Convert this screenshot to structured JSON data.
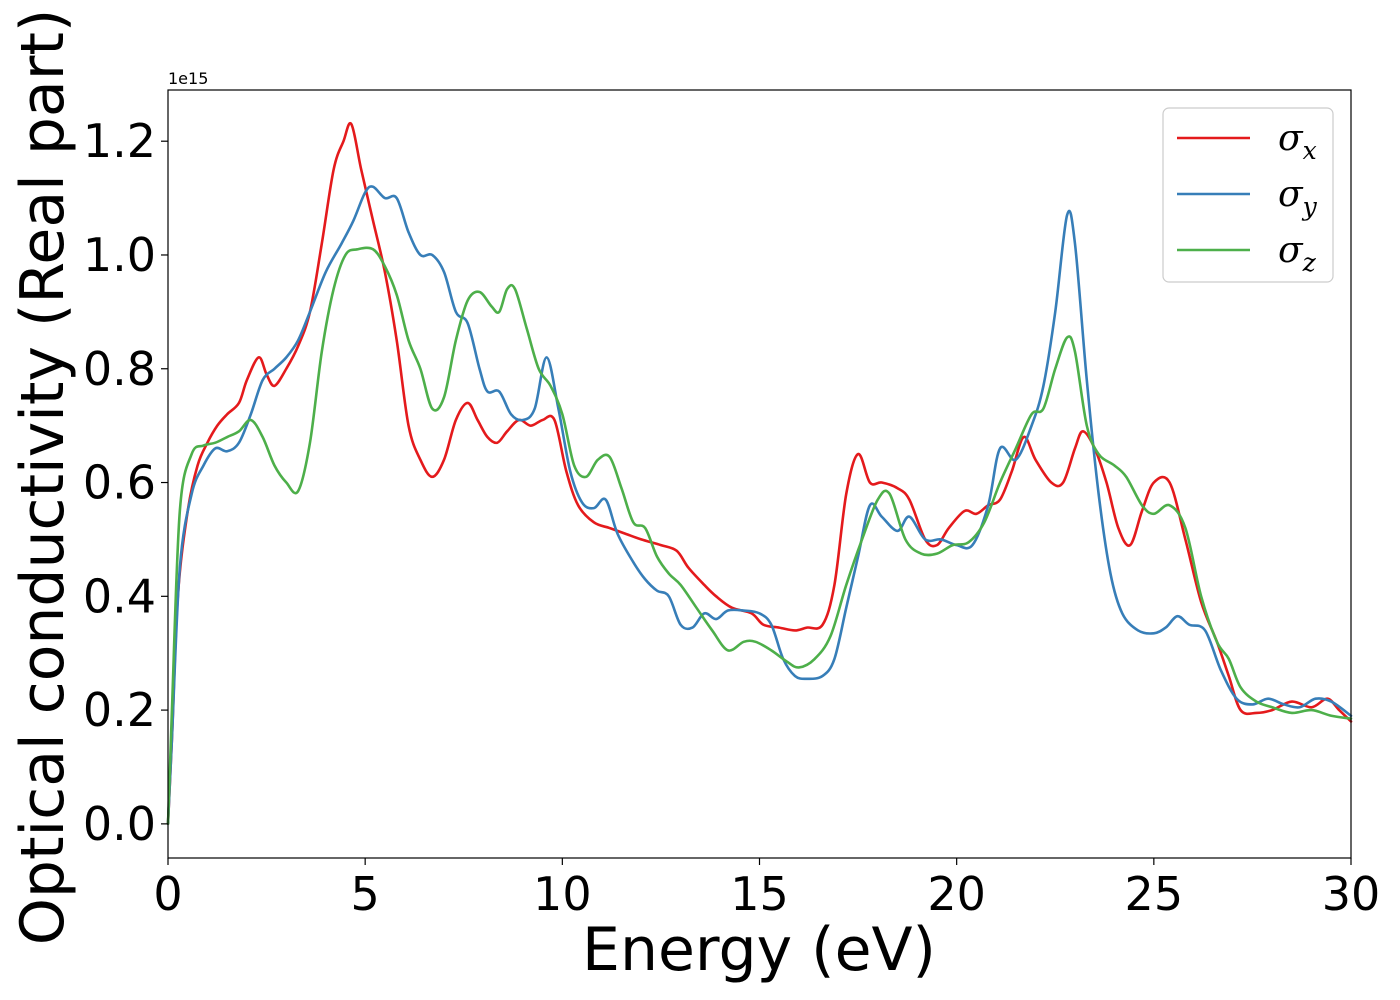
{
  "chart_data": {
    "type": "line",
    "title": "",
    "xlabel": "Energy (eV)",
    "ylabel": "Optical conductivity (Real part)",
    "y_offset_label": "1e15",
    "xlim": [
      0,
      30
    ],
    "ylim": [
      -0.06,
      1.29
    ],
    "xticks": [
      {
        "value": 0,
        "label": "0"
      },
      {
        "value": 5,
        "label": "5"
      },
      {
        "value": 10,
        "label": "10"
      },
      {
        "value": 15,
        "label": "15"
      },
      {
        "value": 20,
        "label": "20"
      },
      {
        "value": 25,
        "label": "25"
      },
      {
        "value": 30,
        "label": "30"
      }
    ],
    "yticks": [
      {
        "value": 0.0,
        "label": "0.0"
      },
      {
        "value": 0.2,
        "label": "0.2"
      },
      {
        "value": 0.4,
        "label": "0.4"
      },
      {
        "value": 0.6,
        "label": "0.6"
      },
      {
        "value": 0.8,
        "label": "0.8"
      },
      {
        "value": 1.0,
        "label": "1.0"
      },
      {
        "value": 1.2,
        "label": "1.2"
      }
    ],
    "grid": false,
    "legend_position": "top-right",
    "series": [
      {
        "name": "σx",
        "symbol": "σ",
        "subscript": "x",
        "color": "#e41a1c",
        "points": [
          [
            0,
            0
          ],
          [
            0.1,
            0.15
          ],
          [
            0.25,
            0.4
          ],
          [
            0.5,
            0.55
          ],
          [
            0.75,
            0.63
          ],
          [
            1.0,
            0.67
          ],
          [
            1.25,
            0.7
          ],
          [
            1.5,
            0.72
          ],
          [
            1.8,
            0.74
          ],
          [
            2.0,
            0.78
          ],
          [
            2.3,
            0.82
          ],
          [
            2.5,
            0.79
          ],
          [
            2.7,
            0.77
          ],
          [
            3.0,
            0.8
          ],
          [
            3.3,
            0.84
          ],
          [
            3.6,
            0.9
          ],
          [
            3.9,
            1.02
          ],
          [
            4.2,
            1.15
          ],
          [
            4.45,
            1.2
          ],
          [
            4.65,
            1.23
          ],
          [
            4.9,
            1.15
          ],
          [
            5.2,
            1.06
          ],
          [
            5.5,
            0.97
          ],
          [
            5.8,
            0.85
          ],
          [
            6.1,
            0.7
          ],
          [
            6.4,
            0.64
          ],
          [
            6.7,
            0.61
          ],
          [
            7.0,
            0.64
          ],
          [
            7.3,
            0.71
          ],
          [
            7.6,
            0.74
          ],
          [
            7.85,
            0.71
          ],
          [
            8.1,
            0.68
          ],
          [
            8.35,
            0.67
          ],
          [
            8.6,
            0.69
          ],
          [
            8.9,
            0.71
          ],
          [
            9.2,
            0.7
          ],
          [
            9.5,
            0.71
          ],
          [
            9.8,
            0.71
          ],
          [
            10.1,
            0.62
          ],
          [
            10.4,
            0.56
          ],
          [
            10.8,
            0.53
          ],
          [
            11.2,
            0.52
          ],
          [
            11.6,
            0.51
          ],
          [
            12.0,
            0.5
          ],
          [
            12.5,
            0.49
          ],
          [
            12.9,
            0.48
          ],
          [
            13.2,
            0.45
          ],
          [
            13.6,
            0.42
          ],
          [
            13.9,
            0.4
          ],
          [
            14.3,
            0.38
          ],
          [
            14.8,
            0.37
          ],
          [
            15.1,
            0.35
          ],
          [
            15.5,
            0.345
          ],
          [
            15.9,
            0.34
          ],
          [
            16.2,
            0.345
          ],
          [
            16.6,
            0.35
          ],
          [
            16.9,
            0.42
          ],
          [
            17.2,
            0.58
          ],
          [
            17.5,
            0.65
          ],
          [
            17.8,
            0.6
          ],
          [
            18.1,
            0.6
          ],
          [
            18.5,
            0.59
          ],
          [
            18.8,
            0.57
          ],
          [
            19.2,
            0.5
          ],
          [
            19.5,
            0.49
          ],
          [
            19.8,
            0.52
          ],
          [
            20.2,
            0.55
          ],
          [
            20.5,
            0.545
          ],
          [
            20.8,
            0.56
          ],
          [
            21.1,
            0.57
          ],
          [
            21.4,
            0.62
          ],
          [
            21.7,
            0.68
          ],
          [
            22.0,
            0.64
          ],
          [
            22.4,
            0.6
          ],
          [
            22.7,
            0.6
          ],
          [
            23.0,
            0.66
          ],
          [
            23.2,
            0.69
          ],
          [
            23.5,
            0.66
          ],
          [
            23.8,
            0.6
          ],
          [
            24.1,
            0.52
          ],
          [
            24.4,
            0.49
          ],
          [
            24.7,
            0.55
          ],
          [
            25.0,
            0.6
          ],
          [
            25.4,
            0.6
          ],
          [
            25.8,
            0.5
          ],
          [
            26.2,
            0.39
          ],
          [
            26.6,
            0.32
          ],
          [
            26.9,
            0.26
          ],
          [
            27.2,
            0.2
          ],
          [
            27.6,
            0.195
          ],
          [
            28.0,
            0.2
          ],
          [
            28.5,
            0.215
          ],
          [
            29.0,
            0.205
          ],
          [
            29.4,
            0.22
          ],
          [
            29.7,
            0.2
          ],
          [
            30.0,
            0.18
          ]
        ]
      },
      {
        "name": "σy",
        "symbol": "σ",
        "subscript": "y",
        "color": "#377eb8",
        "points": [
          [
            0,
            0
          ],
          [
            0.1,
            0.15
          ],
          [
            0.3,
            0.45
          ],
          [
            0.6,
            0.58
          ],
          [
            0.9,
            0.63
          ],
          [
            1.2,
            0.66
          ],
          [
            1.5,
            0.655
          ],
          [
            1.8,
            0.67
          ],
          [
            2.1,
            0.72
          ],
          [
            2.4,
            0.78
          ],
          [
            2.7,
            0.8
          ],
          [
            3.0,
            0.82
          ],
          [
            3.3,
            0.85
          ],
          [
            3.6,
            0.9
          ],
          [
            4.0,
            0.97
          ],
          [
            4.4,
            1.02
          ],
          [
            4.7,
            1.06
          ],
          [
            5.0,
            1.11
          ],
          [
            5.2,
            1.12
          ],
          [
            5.5,
            1.1
          ],
          [
            5.8,
            1.1
          ],
          [
            6.1,
            1.04
          ],
          [
            6.4,
            1.0
          ],
          [
            6.7,
            1.0
          ],
          [
            7.0,
            0.97
          ],
          [
            7.3,
            0.9
          ],
          [
            7.6,
            0.88
          ],
          [
            7.9,
            0.8
          ],
          [
            8.1,
            0.76
          ],
          [
            8.4,
            0.76
          ],
          [
            8.7,
            0.72
          ],
          [
            9.0,
            0.71
          ],
          [
            9.3,
            0.73
          ],
          [
            9.6,
            0.82
          ],
          [
            9.9,
            0.73
          ],
          [
            10.2,
            0.62
          ],
          [
            10.5,
            0.565
          ],
          [
            10.8,
            0.555
          ],
          [
            11.1,
            0.57
          ],
          [
            11.4,
            0.51
          ],
          [
            11.8,
            0.46
          ],
          [
            12.1,
            0.43
          ],
          [
            12.4,
            0.41
          ],
          [
            12.7,
            0.4
          ],
          [
            13.0,
            0.35
          ],
          [
            13.3,
            0.345
          ],
          [
            13.6,
            0.37
          ],
          [
            13.9,
            0.36
          ],
          [
            14.2,
            0.375
          ],
          [
            14.6,
            0.375
          ],
          [
            15.0,
            0.37
          ],
          [
            15.3,
            0.35
          ],
          [
            15.6,
            0.29
          ],
          [
            15.9,
            0.26
          ],
          [
            16.2,
            0.255
          ],
          [
            16.6,
            0.26
          ],
          [
            16.9,
            0.29
          ],
          [
            17.2,
            0.38
          ],
          [
            17.5,
            0.47
          ],
          [
            17.8,
            0.56
          ],
          [
            18.1,
            0.54
          ],
          [
            18.5,
            0.515
          ],
          [
            18.8,
            0.54
          ],
          [
            19.2,
            0.5
          ],
          [
            19.6,
            0.5
          ],
          [
            20.0,
            0.49
          ],
          [
            20.4,
            0.49
          ],
          [
            20.8,
            0.56
          ],
          [
            21.1,
            0.66
          ],
          [
            21.5,
            0.64
          ],
          [
            21.9,
            0.7
          ],
          [
            22.2,
            0.77
          ],
          [
            22.5,
            0.9
          ],
          [
            22.8,
            1.07
          ],
          [
            23.0,
            1.02
          ],
          [
            23.3,
            0.78
          ],
          [
            23.6,
            0.58
          ],
          [
            23.9,
            0.44
          ],
          [
            24.2,
            0.37
          ],
          [
            24.6,
            0.34
          ],
          [
            25.0,
            0.335
          ],
          [
            25.3,
            0.345
          ],
          [
            25.6,
            0.365
          ],
          [
            25.9,
            0.35
          ],
          [
            26.3,
            0.34
          ],
          [
            26.7,
            0.27
          ],
          [
            27.1,
            0.22
          ],
          [
            27.5,
            0.21
          ],
          [
            27.9,
            0.22
          ],
          [
            28.3,
            0.21
          ],
          [
            28.7,
            0.205
          ],
          [
            29.1,
            0.22
          ],
          [
            29.5,
            0.215
          ],
          [
            30.0,
            0.19
          ]
        ]
      },
      {
        "name": "σz",
        "symbol": "σ",
        "subscript": "z",
        "color": "#4daf4a",
        "points": [
          [
            0,
            0
          ],
          [
            0.1,
            0.2
          ],
          [
            0.3,
            0.55
          ],
          [
            0.6,
            0.65
          ],
          [
            0.9,
            0.665
          ],
          [
            1.2,
            0.67
          ],
          [
            1.5,
            0.68
          ],
          [
            1.8,
            0.69
          ],
          [
            2.1,
            0.71
          ],
          [
            2.4,
            0.68
          ],
          [
            2.7,
            0.63
          ],
          [
            3.0,
            0.6
          ],
          [
            3.3,
            0.585
          ],
          [
            3.6,
            0.67
          ],
          [
            3.9,
            0.83
          ],
          [
            4.2,
            0.94
          ],
          [
            4.5,
            1.0
          ],
          [
            4.8,
            1.01
          ],
          [
            5.2,
            1.01
          ],
          [
            5.5,
            0.98
          ],
          [
            5.8,
            0.93
          ],
          [
            6.1,
            0.85
          ],
          [
            6.4,
            0.8
          ],
          [
            6.7,
            0.73
          ],
          [
            7.0,
            0.75
          ],
          [
            7.3,
            0.85
          ],
          [
            7.6,
            0.92
          ],
          [
            7.9,
            0.935
          ],
          [
            8.2,
            0.91
          ],
          [
            8.4,
            0.9
          ],
          [
            8.6,
            0.94
          ],
          [
            8.8,
            0.94
          ],
          [
            9.1,
            0.87
          ],
          [
            9.4,
            0.8
          ],
          [
            9.7,
            0.77
          ],
          [
            10.0,
            0.72
          ],
          [
            10.3,
            0.63
          ],
          [
            10.6,
            0.61
          ],
          [
            10.9,
            0.64
          ],
          [
            11.2,
            0.645
          ],
          [
            11.5,
            0.59
          ],
          [
            11.8,
            0.53
          ],
          [
            12.1,
            0.52
          ],
          [
            12.4,
            0.47
          ],
          [
            12.7,
            0.44
          ],
          [
            13.0,
            0.42
          ],
          [
            13.4,
            0.38
          ],
          [
            13.8,
            0.34
          ],
          [
            14.2,
            0.305
          ],
          [
            14.6,
            0.32
          ],
          [
            14.9,
            0.32
          ],
          [
            15.3,
            0.305
          ],
          [
            15.7,
            0.285
          ],
          [
            16.0,
            0.275
          ],
          [
            16.4,
            0.29
          ],
          [
            16.8,
            0.33
          ],
          [
            17.2,
            0.42
          ],
          [
            17.6,
            0.5
          ],
          [
            18.0,
            0.57
          ],
          [
            18.3,
            0.58
          ],
          [
            18.7,
            0.5
          ],
          [
            19.1,
            0.475
          ],
          [
            19.5,
            0.475
          ],
          [
            19.9,
            0.49
          ],
          [
            20.3,
            0.495
          ],
          [
            20.7,
            0.53
          ],
          [
            21.1,
            0.6
          ],
          [
            21.5,
            0.66
          ],
          [
            21.9,
            0.72
          ],
          [
            22.2,
            0.73
          ],
          [
            22.5,
            0.8
          ],
          [
            22.8,
            0.855
          ],
          [
            23.0,
            0.83
          ],
          [
            23.3,
            0.7
          ],
          [
            23.6,
            0.65
          ],
          [
            24.0,
            0.63
          ],
          [
            24.3,
            0.61
          ],
          [
            24.7,
            0.56
          ],
          [
            25.0,
            0.545
          ],
          [
            25.4,
            0.56
          ],
          [
            25.8,
            0.52
          ],
          [
            26.2,
            0.4
          ],
          [
            26.6,
            0.32
          ],
          [
            26.9,
            0.29
          ],
          [
            27.2,
            0.24
          ],
          [
            27.6,
            0.215
          ],
          [
            28.0,
            0.205
          ],
          [
            28.5,
            0.195
          ],
          [
            29.0,
            0.2
          ],
          [
            29.5,
            0.19
          ],
          [
            30.0,
            0.185
          ]
        ]
      }
    ]
  }
}
